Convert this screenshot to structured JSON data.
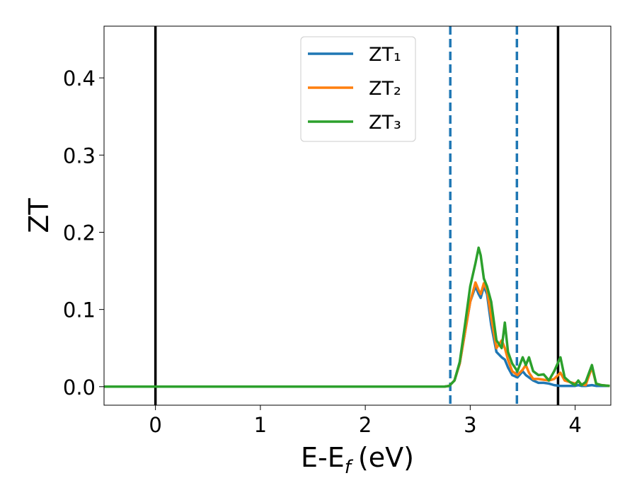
{
  "chart_data": {
    "type": "line",
    "xlabel": [
      "E-E",
      "f",
      "(eV)"
    ],
    "ylabel": "ZT",
    "x": [
      -0.49,
      2.75,
      2.8,
      2.85,
      2.9,
      2.95,
      3.0,
      3.05,
      3.08,
      3.1,
      3.13,
      3.16,
      3.2,
      3.25,
      3.3,
      3.33,
      3.36,
      3.4,
      3.45,
      3.5,
      3.53,
      3.56,
      3.6,
      3.65,
      3.7,
      3.75,
      3.8,
      3.86,
      3.9,
      3.95,
      4.0,
      4.03,
      4.06,
      4.1,
      4.16,
      4.2,
      4.25,
      4.33
    ],
    "series": [
      {
        "name": "ZT₁",
        "color": "#1f77b4",
        "values": [
          0,
          0,
          0.001,
          0.008,
          0.03,
          0.07,
          0.11,
          0.13,
          0.12,
          0.115,
          0.13,
          0.12,
          0.08,
          0.045,
          0.038,
          0.035,
          0.025,
          0.015,
          0.012,
          0.02,
          0.015,
          0.012,
          0.008,
          0.005,
          0.005,
          0.004,
          0.002,
          0.001,
          0.001,
          0.001,
          0.001,
          0.002,
          0.001,
          0.001,
          0.002,
          0.001,
          0.001,
          0.001
        ]
      },
      {
        "name": "ZT₂",
        "color": "#ff7f0e",
        "values": [
          0,
          0,
          0.001,
          0.008,
          0.03,
          0.07,
          0.11,
          0.135,
          0.125,
          0.12,
          0.134,
          0.125,
          0.09,
          0.05,
          0.06,
          0.05,
          0.035,
          0.02,
          0.015,
          0.022,
          0.028,
          0.018,
          0.01,
          0.01,
          0.009,
          0.008,
          0.01,
          0.018,
          0.008,
          0.006,
          0.004,
          0.007,
          0.003,
          0.002,
          0.025,
          0.004,
          0.002,
          0.001
        ]
      },
      {
        "name": "ZT₃",
        "color": "#2ca02c",
        "values": [
          0,
          0,
          0.001,
          0.008,
          0.032,
          0.08,
          0.13,
          0.16,
          0.18,
          0.17,
          0.14,
          0.13,
          0.11,
          0.06,
          0.05,
          0.083,
          0.045,
          0.03,
          0.02,
          0.038,
          0.028,
          0.038,
          0.02,
          0.015,
          0.016,
          0.008,
          0.02,
          0.038,
          0.012,
          0.006,
          0.002,
          0.008,
          0.002,
          0.006,
          0.028,
          0.004,
          0.002,
          0.001
        ]
      }
    ],
    "vlines": [
      {
        "x": 0,
        "color": "#000000",
        "style": "solid"
      },
      {
        "x": 3.837,
        "color": "#000000",
        "style": "solid"
      },
      {
        "x": 2.81,
        "color": "#1f77b4",
        "style": "dashed"
      },
      {
        "x": 3.445,
        "color": "#1f77b4",
        "style": "dashed"
      }
    ],
    "xlim": [
      -0.49,
      4.34
    ],
    "ylim": [
      -0.024,
      0.467
    ],
    "xticks": [
      0,
      1,
      2,
      3,
      4
    ],
    "yticks": [
      {
        "value": 0,
        "label": "0.0"
      },
      0.1,
      0.2,
      0.3,
      0.4
    ],
    "legend": "upper center"
  }
}
